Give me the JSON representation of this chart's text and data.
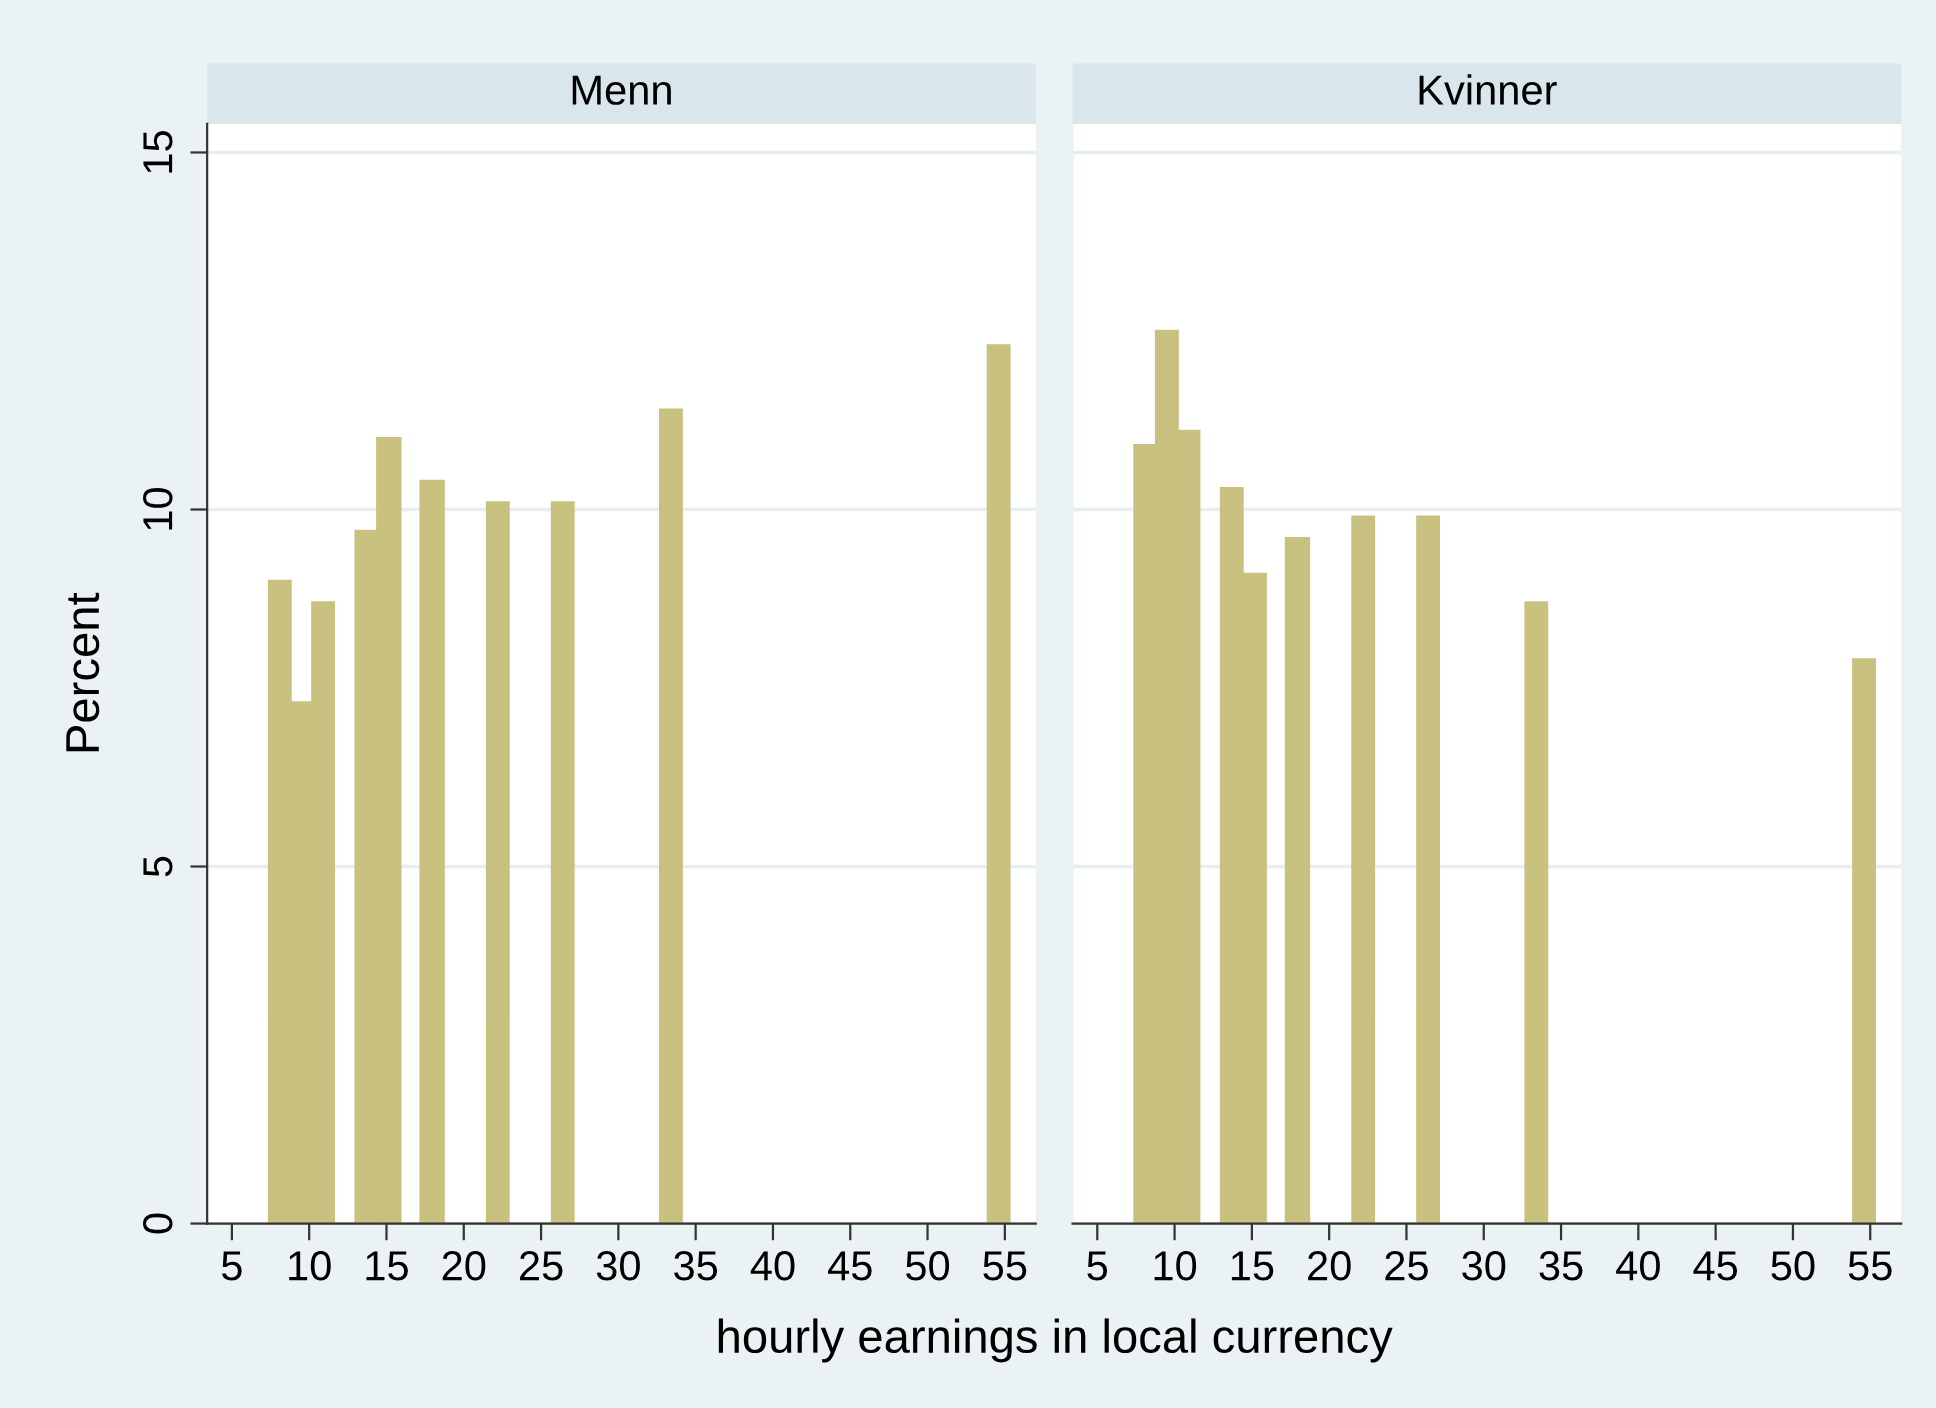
{
  "chart_data": [
    {
      "type": "histogram",
      "title": "Menn",
      "xlabel": "hourly earnings in local currency",
      "ylabel": "Percent",
      "color": "#c9c17f",
      "bins": [
        7.4,
        8.8,
        10.2,
        11.6,
        13.0,
        14.4,
        15.9,
        17.2,
        18.7,
        21.5,
        22.9,
        25.7,
        27.1,
        32.7,
        34.1,
        53.9,
        55.3
      ],
      "values": [
        9.0,
        7.3,
        8.7,
        0,
        9.7,
        11.0,
        0,
        10.4,
        0,
        10.1,
        0,
        10.1,
        0,
        11.4,
        0,
        12.3
      ],
      "xlim": [
        3.4,
        57
      ],
      "xticks": [
        5,
        10,
        15,
        20,
        25,
        30,
        35,
        40,
        45,
        50,
        55
      ],
      "ylim": [
        0,
        15.4
      ],
      "yticks": [
        0,
        5,
        10,
        15
      ],
      "grid": "y"
    },
    {
      "type": "histogram",
      "title": "Kvinner",
      "color": "#c9c17f",
      "bins": [
        7.4,
        8.8,
        10.2,
        11.6,
        13.0,
        14.4,
        15.9,
        17.2,
        18.7,
        21.5,
        22.9,
        25.7,
        27.1,
        32.7,
        34.1,
        53.9,
        55.3
      ],
      "values": [
        10.9,
        12.5,
        11.1,
        0,
        10.3,
        9.1,
        0,
        9.6,
        0,
        9.9,
        0,
        9.9,
        0,
        8.7,
        0,
        7.9
      ],
      "xlim": [
        3.4,
        57
      ],
      "xticks": [
        5,
        10,
        15,
        20,
        25,
        30,
        35,
        40,
        45,
        50,
        55
      ],
      "ylim": [
        0,
        15.4
      ],
      "yticks": [
        0,
        5,
        10,
        15
      ],
      "grid": "y",
      "tick_labels": "x"
    }
  ]
}
